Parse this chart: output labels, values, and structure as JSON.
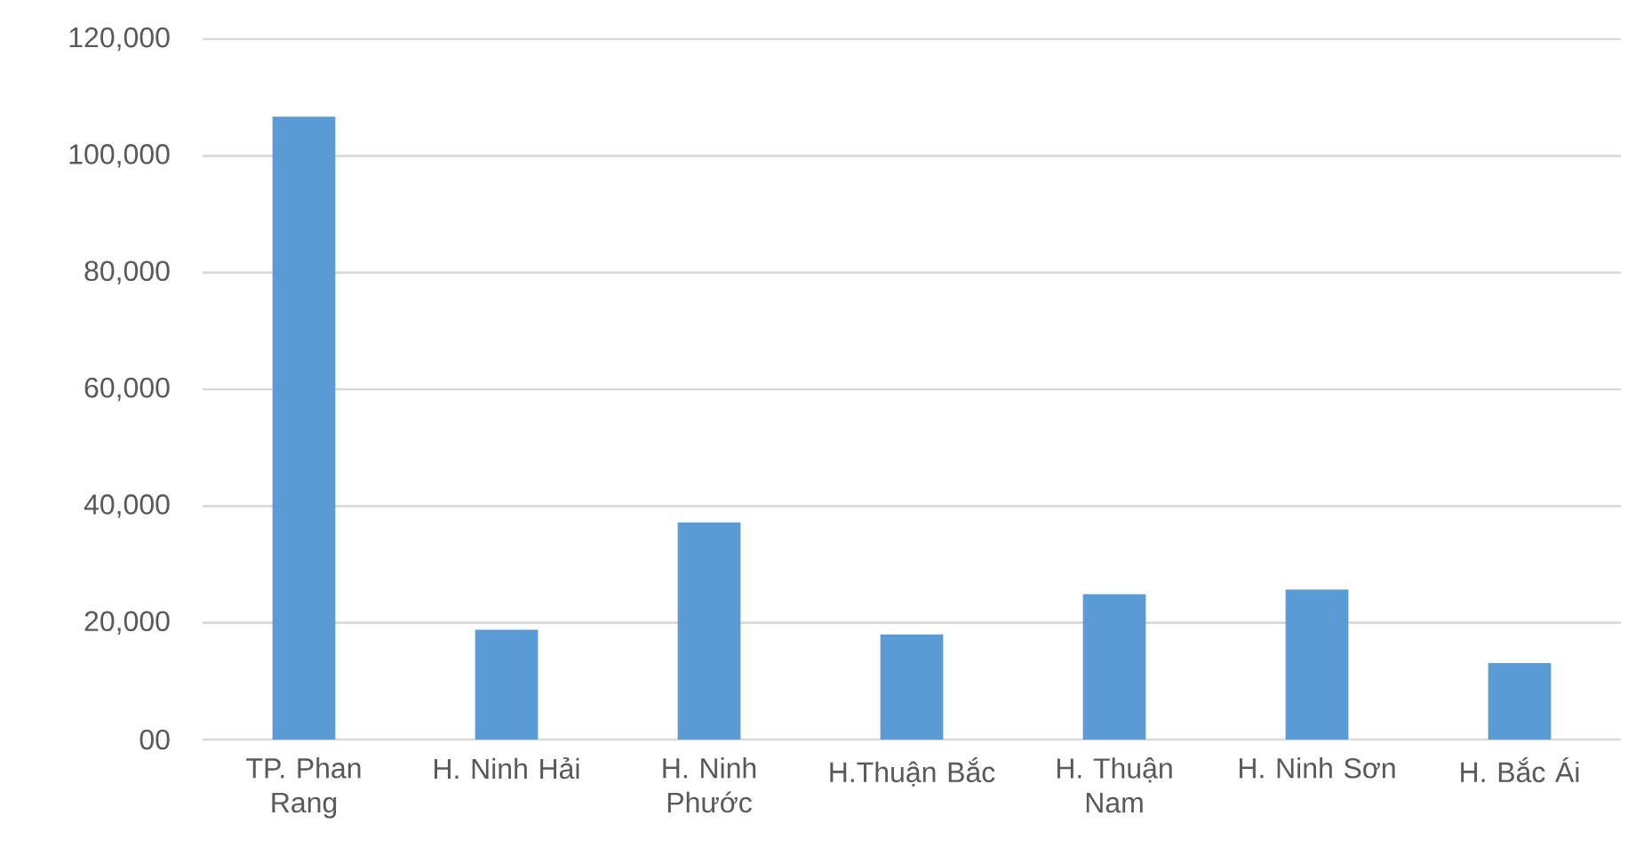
{
  "chart_data": {
    "type": "bar",
    "categories": [
      "TP. Phan Rang",
      "H. Ninh Hải",
      "H. Ninh Phước",
      "H.Thuận Bắc",
      "H. Thuận Nam",
      "H. Ninh Sơn",
      "H. Bắc Ái"
    ],
    "values": [
      106700,
      18800,
      37200,
      18000,
      24900,
      25700,
      13100
    ],
    "color": "#5b9bd5",
    "ylim": [
      0,
      120000
    ],
    "yticks": [
      {
        "value": 0,
        "label": "00"
      },
      {
        "value": 20000,
        "label": "20,000"
      },
      {
        "value": 40000,
        "label": "40,000"
      },
      {
        "value": 60000,
        "label": "60,000"
      },
      {
        "value": 80000,
        "label": "80,000"
      },
      {
        "value": 100000,
        "label": "100,000"
      },
      {
        "value": 120000,
        "label": "120,000"
      }
    ],
    "grid": "y"
  }
}
